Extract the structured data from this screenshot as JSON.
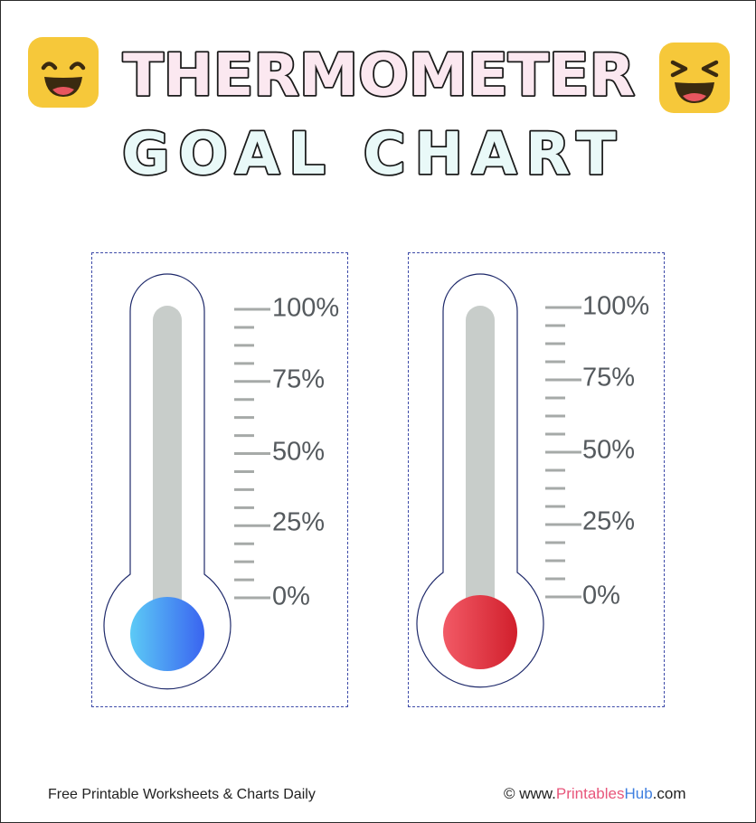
{
  "title": {
    "line1": "THERMOMETER",
    "line2": "GOAL CHART",
    "line1_fill": "#fbe8f0",
    "line2_fill": "#e9f9f8",
    "stroke": "#1a1a1a"
  },
  "emojis": {
    "left": "grinning-face-icon",
    "right": "squinting-face-icon",
    "color": "#f6c83a"
  },
  "thermometers": [
    {
      "id": "blue",
      "bulb_gradient": [
        "#5ccaf6",
        "#3a64f0"
      ],
      "scale_labels": [
        "100%",
        "75%",
        "50%",
        "25%",
        "0%"
      ],
      "progress": 0
    },
    {
      "id": "red",
      "bulb_gradient": [
        "#f25a66",
        "#d11f2c"
      ],
      "scale_labels": [
        "100%",
        "75%",
        "50%",
        "25%",
        "0%"
      ],
      "progress": 0
    }
  ],
  "footer": {
    "left": "Free Printable Worksheets & Charts Daily",
    "right_prefix": "© www.",
    "right_printables": "Printables",
    "right_hub": "Hub",
    "right_suffix": ".com"
  }
}
